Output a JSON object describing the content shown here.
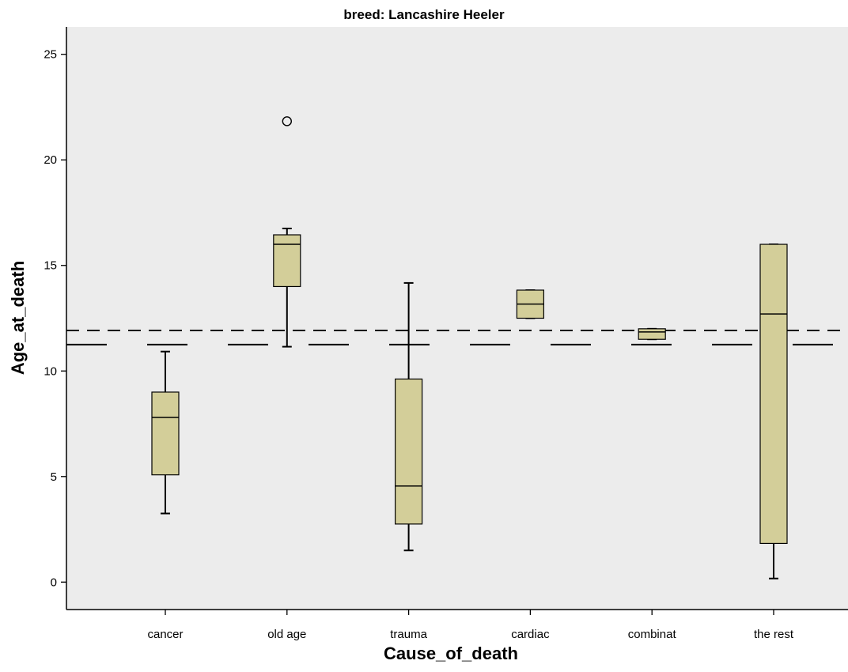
{
  "chart_data": {
    "type": "boxplot",
    "title": "breed: Lancashire Heeler",
    "xlabel": "Cause_of_death",
    "ylabel": "Age_at_death",
    "ylim": [
      -1.3,
      26.3
    ],
    "yticks": [
      0,
      5,
      10,
      15,
      20,
      25
    ],
    "categories": [
      "cancer",
      "old age",
      "trauma",
      "cardiac",
      "combinat",
      "the rest"
    ],
    "boxes": [
      {
        "category": "cancer",
        "whisker_low": 3.25,
        "q1": 5.08,
        "median": 7.8,
        "q3": 9.0,
        "whisker_high": 10.92,
        "outliers": []
      },
      {
        "category": "old age",
        "whisker_low": 11.15,
        "q1": 14.0,
        "median": 16.0,
        "q3": 16.45,
        "whisker_high": 16.75,
        "outliers": [
          21.83
        ]
      },
      {
        "category": "trauma",
        "whisker_low": 1.5,
        "q1": 2.75,
        "median": 4.55,
        "q3": 9.62,
        "whisker_high": 14.17,
        "outliers": []
      },
      {
        "category": "cardiac",
        "whisker_low": 12.5,
        "q1": 12.5,
        "median": 13.17,
        "q3": 13.83,
        "whisker_high": 13.83,
        "outliers": []
      },
      {
        "category": "combinat",
        "whisker_low": 11.5,
        "q1": 11.5,
        "median": 11.85,
        "q3": 12.0,
        "whisker_high": 12.0,
        "outliers": []
      },
      {
        "category": "the rest",
        "whisker_low": 0.17,
        "q1": 1.83,
        "median": 12.7,
        "q3": 16.0,
        "whisker_high": 16.0,
        "outliers": []
      }
    ],
    "reference_lines": [
      {
        "style": "short-dash",
        "y": 11.92
      },
      {
        "style": "long-dash",
        "y": 11.25
      }
    ],
    "colors": {
      "plot_background": "#ececec",
      "box_fill": "#d3ce99",
      "stroke": "#000000"
    },
    "grid": false,
    "legend": "none"
  }
}
